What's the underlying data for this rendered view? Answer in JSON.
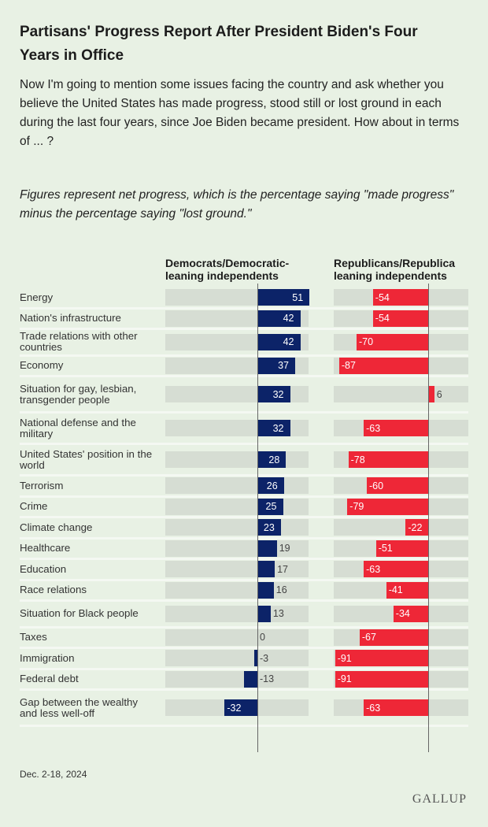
{
  "chart_data": {
    "type": "bar",
    "title": "Partisans' Progress Report After President Biden's Four Years in Office",
    "subtitle": "Now I'm going to mention some issues facing the country and ask whether you believe the United States has made progress, stood still or lost ground in each during the last four years, since Joe Biden became president. How about in terms of ... ?",
    "note": "Figures represent net progress, which is the percentage saying \"made progress\" minus the percentage saying \"lost ground.\"",
    "colors": {
      "dem": "#0c2368",
      "rep": "#ee2737",
      "track": "#d6ddd3",
      "background": "#e8f1e4"
    },
    "series": [
      {
        "name": "Democrats/Democratic-leaning independents",
        "values": [
          51,
          42,
          42,
          37,
          32,
          32,
          28,
          26,
          25,
          23,
          19,
          17,
          16,
          13,
          0,
          -3,
          -13,
          -32
        ]
      },
      {
        "name": "Republicans/Republican-leaning independents",
        "values": [
          -54,
          -54,
          -70,
          -87,
          6,
          -63,
          -78,
          -60,
          -79,
          -22,
          -51,
          -63,
          -41,
          -34,
          -67,
          -91,
          -91,
          -63
        ]
      }
    ],
    "series_headers": [
      "Democrats/Democratic-leaning independents",
      "Republicans/Republica leaning independents"
    ],
    "categories": [
      "Energy",
      "Nation's infrastructure",
      "Trade relations with other countries",
      "Economy",
      "Situation for gay, lesbian, transgender people",
      "National defense and the military",
      "United States' position in the world",
      "Terrorism",
      "Crime",
      "Climate change",
      "Healthcare",
      "Education",
      "Race relations",
      "Situation for Black people",
      "Taxes",
      "Immigration",
      "Federal debt",
      "Gap between the wealthy and less well-off"
    ],
    "source_date": "Dec. 2-18, 2024",
    "brand": "GALLUP"
  }
}
